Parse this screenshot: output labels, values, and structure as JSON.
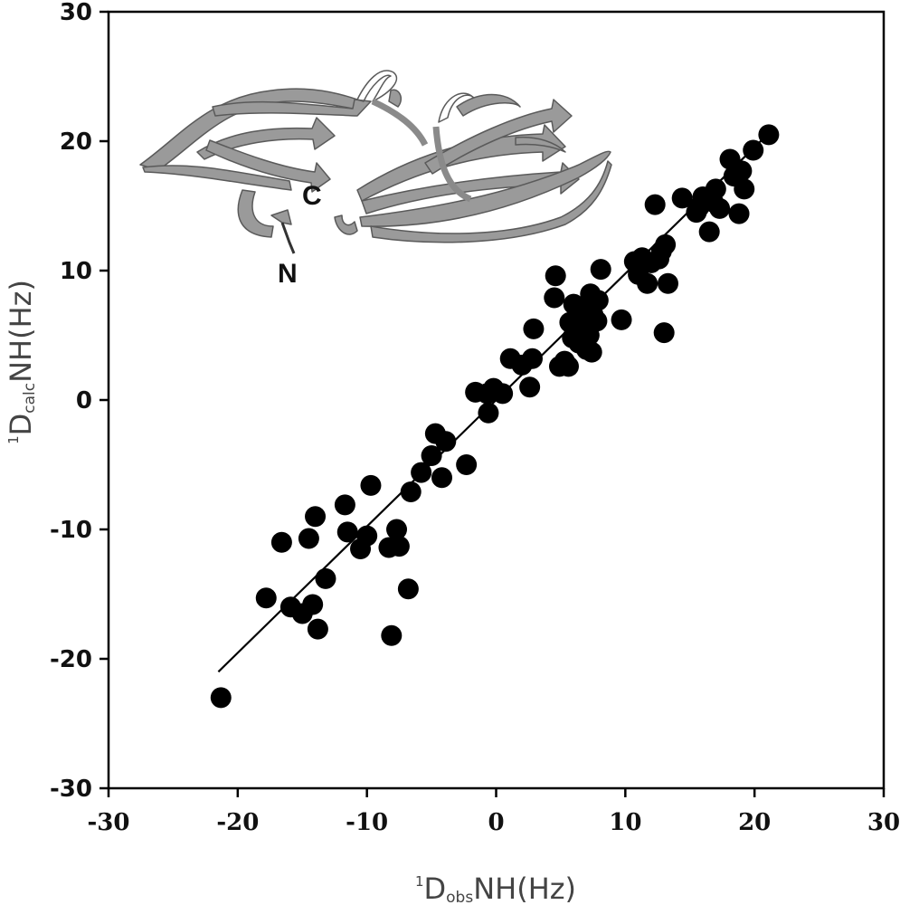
{
  "chart_data": {
    "type": "scatter",
    "title": "",
    "x_axis": {
      "prefix": "1",
      "main": "D",
      "sub": "obs",
      "rest": "NH(Hz)",
      "range": [
        -30,
        30
      ],
      "ticks": [
        -30,
        -20,
        -10,
        0,
        10,
        20,
        30
      ],
      "tick_labels": [
        "-30",
        "-20",
        "-10",
        "0",
        "10",
        "20",
        "30"
      ]
    },
    "y_axis": {
      "prefix": "1",
      "main": "D",
      "sub": "calc",
      "rest": "NH(Hz)",
      "range": [
        -30,
        30
      ],
      "ticks": [
        -30,
        -20,
        -10,
        0,
        10,
        20,
        30
      ],
      "tick_labels": [
        "-30",
        "-20",
        "-10",
        "0",
        "10",
        "20",
        "30"
      ]
    },
    "grid": false,
    "legend": "none",
    "fit_line": {
      "x": [
        -21.5,
        21.5
      ],
      "y": [
        -21,
        21
      ]
    },
    "points": [
      [
        -21.3,
        -23.0
      ],
      [
        -17.8,
        -15.3
      ],
      [
        -16.6,
        -11.0
      ],
      [
        -15.9,
        -16.0
      ],
      [
        -15.0,
        -16.5
      ],
      [
        -14.2,
        -15.8
      ],
      [
        -14.5,
        -10.7
      ],
      [
        -14.0,
        -9.0
      ],
      [
        -13.8,
        -17.7
      ],
      [
        -13.2,
        -13.8
      ],
      [
        -11.7,
        -8.1
      ],
      [
        -11.5,
        -10.2
      ],
      [
        -10.5,
        -11.5
      ],
      [
        -10.0,
        -10.5
      ],
      [
        -9.7,
        -6.6
      ],
      [
        -8.3,
        -11.4
      ],
      [
        -8.1,
        -18.2
      ],
      [
        -7.7,
        -10.0
      ],
      [
        -7.5,
        -11.3
      ],
      [
        -6.8,
        -14.6
      ],
      [
        -6.6,
        -7.1
      ],
      [
        -5.8,
        -5.6
      ],
      [
        -5.0,
        -4.3
      ],
      [
        -4.7,
        -2.6
      ],
      [
        -4.2,
        -6.0
      ],
      [
        -3.9,
        -3.2
      ],
      [
        -2.3,
        -5.0
      ],
      [
        -1.6,
        0.6
      ],
      [
        -0.7,
        0.5
      ],
      [
        -0.6,
        -1.0
      ],
      [
        -0.2,
        0.9
      ],
      [
        0.5,
        0.5
      ],
      [
        1.1,
        3.2
      ],
      [
        2.0,
        2.7
      ],
      [
        2.6,
        1.0
      ],
      [
        2.8,
        3.2
      ],
      [
        2.9,
        5.5
      ],
      [
        4.6,
        9.6
      ],
      [
        4.5,
        7.9
      ],
      [
        4.9,
        2.6
      ],
      [
        5.3,
        3.0
      ],
      [
        5.6,
        2.6
      ],
      [
        5.7,
        6.0
      ],
      [
        5.9,
        4.8
      ],
      [
        6.0,
        7.4
      ],
      [
        6.2,
        5.4
      ],
      [
        6.4,
        4.4
      ],
      [
        6.5,
        7.1
      ],
      [
        6.8,
        6.3
      ],
      [
        7.0,
        3.9
      ],
      [
        7.2,
        5.0
      ],
      [
        7.3,
        8.2
      ],
      [
        7.4,
        3.7
      ],
      [
        7.5,
        6.6
      ],
      [
        7.8,
        6.1
      ],
      [
        7.9,
        7.7
      ],
      [
        8.1,
        10.1
      ],
      [
        9.7,
        6.2
      ],
      [
        10.7,
        10.7
      ],
      [
        11.0,
        9.7
      ],
      [
        11.3,
        11.0
      ],
      [
        11.7,
        9.0
      ],
      [
        12.0,
        10.6
      ],
      [
        12.3,
        15.1
      ],
      [
        12.6,
        10.9
      ],
      [
        12.8,
        11.5
      ],
      [
        13.0,
        5.2
      ],
      [
        13.1,
        12.0
      ],
      [
        13.3,
        9.0
      ],
      [
        14.4,
        15.6
      ],
      [
        15.5,
        14.5
      ],
      [
        15.7,
        14.9
      ],
      [
        16.0,
        15.7
      ],
      [
        16.5,
        13.0
      ],
      [
        16.8,
        15.3
      ],
      [
        17.0,
        16.3
      ],
      [
        17.3,
        14.8
      ],
      [
        18.1,
        18.6
      ],
      [
        18.4,
        17.3
      ],
      [
        18.8,
        14.4
      ],
      [
        19.0,
        17.7
      ],
      [
        19.2,
        16.3
      ],
      [
        19.9,
        19.3
      ],
      [
        21.1,
        20.5
      ]
    ]
  },
  "inset": {
    "label_c": "C",
    "label_n": "N"
  }
}
